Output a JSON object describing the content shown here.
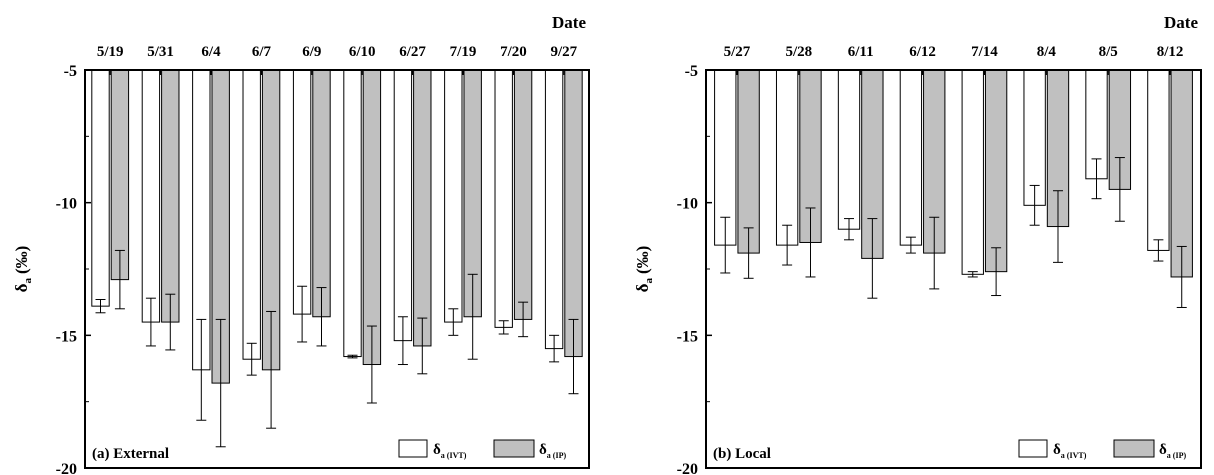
{
  "panels": [
    {
      "panel_label": "(a) External",
      "date_label": "Date",
      "ylabel_main": "δ",
      "ylabel_sub": "a",
      "ylabel_unit": "(‰)",
      "legend": [
        {
          "main": "δ",
          "sub": "a (IVT)"
        },
        {
          "main": "δ",
          "sub": "a (IP)"
        }
      ]
    },
    {
      "panel_label": "(b) Local",
      "date_label": "Date",
      "ylabel_main": "δ",
      "ylabel_sub": "a",
      "ylabel_unit": "(‰)",
      "legend": [
        {
          "main": "δ",
          "sub": "a (IVT)"
        },
        {
          "main": "δ",
          "sub": "a (IP)"
        }
      ]
    }
  ],
  "chart_data": [
    {
      "type": "bar",
      "title": "(a) External",
      "xlabel": "Date",
      "ylabel": "δa (‰)",
      "ylim": [
        -20,
        -5
      ],
      "yticks": [
        -5,
        -10,
        -15,
        -20
      ],
      "x_axis_position": "top",
      "categories": [
        "5/19",
        "5/31",
        "6/4",
        "6/7",
        "6/9",
        "6/10",
        "6/27",
        "7/19",
        "7/20",
        "9/27"
      ],
      "series": [
        {
          "name": "δa (IVT)",
          "color": "#ffffff",
          "values": [
            -13.9,
            -14.5,
            -16.3,
            -15.9,
            -14.2,
            -15.8,
            -15.2,
            -14.5,
            -14.7,
            -15.5
          ],
          "error": [
            0.25,
            0.9,
            1.9,
            0.6,
            1.05,
            0.05,
            0.9,
            0.5,
            0.25,
            0.5
          ]
        },
        {
          "name": "δa (IP)",
          "color": "#c0c0c0",
          "values": [
            -12.9,
            -14.5,
            -16.8,
            -16.3,
            -14.3,
            -16.1,
            -15.4,
            -14.3,
            -14.4,
            -15.8
          ],
          "error": [
            1.1,
            1.05,
            2.4,
            2.2,
            1.1,
            1.45,
            1.05,
            1.6,
            0.65,
            1.4
          ]
        }
      ],
      "legend_position": "bottom-right",
      "grid": false
    },
    {
      "type": "bar",
      "title": "(b) Local",
      "xlabel": "Date",
      "ylabel": "δa (‰)",
      "ylim": [
        -20,
        -5
      ],
      "yticks": [
        -5,
        -10,
        -15,
        -20
      ],
      "x_axis_position": "top",
      "categories": [
        "5/27",
        "5/28",
        "6/11",
        "6/12",
        "7/14",
        "8/4",
        "8/5",
        "8/12"
      ],
      "series": [
        {
          "name": "δa (IVT)",
          "color": "#ffffff",
          "values": [
            -11.6,
            -11.6,
            -11.0,
            -11.6,
            -12.7,
            -10.1,
            -9.1,
            -11.8
          ],
          "error": [
            1.05,
            0.75,
            0.4,
            0.3,
            0.1,
            0.75,
            0.75,
            0.4
          ]
        },
        {
          "name": "δa (IP)",
          "color": "#c0c0c0",
          "values": [
            -11.9,
            -11.5,
            -12.1,
            -11.9,
            -12.6,
            -10.9,
            -9.5,
            -12.8
          ],
          "error": [
            0.95,
            1.3,
            1.5,
            1.35,
            0.9,
            1.35,
            1.2,
            1.15
          ]
        }
      ],
      "legend_position": "bottom-right",
      "grid": false
    }
  ]
}
